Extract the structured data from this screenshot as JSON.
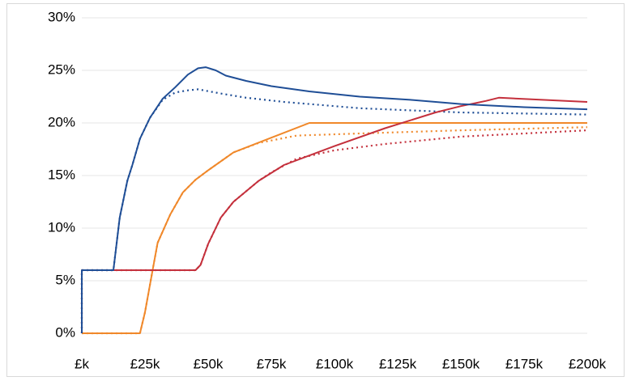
{
  "chart_data": {
    "type": "line",
    "xlim": [
      0,
      200000
    ],
    "xticks": [
      {
        "value": 0,
        "label": "£k"
      },
      {
        "value": 25000,
        "label": "£25k"
      },
      {
        "value": 50000,
        "label": "£50k"
      },
      {
        "value": 75000,
        "label": "£75k"
      },
      {
        "value": 100000,
        "label": "£100k"
      },
      {
        "value": 125000,
        "label": "£125k"
      },
      {
        "value": 150000,
        "label": "£150k"
      },
      {
        "value": 175000,
        "label": "£175k"
      },
      {
        "value": 200000,
        "label": "£200k"
      }
    ],
    "ylim": [
      0,
      30
    ],
    "yticks": [
      {
        "value": 0,
        "label": "0%"
      },
      {
        "value": 5,
        "label": "5%"
      },
      {
        "value": 10,
        "label": "10%"
      },
      {
        "value": 15,
        "label": "15%"
      },
      {
        "value": 20,
        "label": "20%"
      },
      {
        "value": 25,
        "label": "25%"
      },
      {
        "value": 30,
        "label": "30%"
      }
    ],
    "grid": true,
    "series": [
      {
        "color": "#c4303c",
        "style": "dotted",
        "x": [
          0,
          0,
          45000,
          47000,
          50000,
          55000,
          60000,
          70000,
          75000,
          85000,
          100000,
          120000,
          150000,
          175000,
          200000
        ],
        "values": [
          0,
          6,
          6,
          6.5,
          8.5,
          11,
          12.5,
          14.5,
          15.3,
          16.6,
          17.4,
          18.0,
          18.7,
          19.0,
          19.3
        ]
      },
      {
        "color": "#f0882a",
        "style": "dotted",
        "x": [
          0,
          23000,
          25000,
          28000,
          30000,
          35000,
          40000,
          45000,
          50000,
          60000,
          70000,
          85000,
          110000,
          150000,
          200000
        ],
        "values": [
          0,
          0,
          2,
          6,
          8.6,
          11.3,
          13.4,
          14.6,
          15.5,
          17.2,
          18.1,
          18.8,
          19.0,
          19.3,
          19.6
        ]
      },
      {
        "color": "#1f4e96",
        "style": "dotted",
        "x": [
          0,
          0,
          12500,
          15000,
          18000,
          20000,
          23000,
          27000,
          32000,
          37000,
          42000,
          46000,
          55000,
          65000,
          80000,
          110000,
          150000,
          200000
        ],
        "values": [
          0,
          6,
          6,
          11,
          14.5,
          16,
          18.5,
          20.5,
          22.2,
          22.9,
          23.1,
          23.2,
          22.8,
          22.4,
          22.0,
          21.4,
          21.0,
          20.8
        ]
      },
      {
        "color": "#f0882a",
        "style": "solid",
        "x": [
          0,
          23000,
          25000,
          28000,
          30000,
          35000,
          40000,
          45000,
          50000,
          60000,
          75000,
          90000,
          200000
        ],
        "values": [
          0,
          0,
          2,
          6,
          8.6,
          11.3,
          13.4,
          14.6,
          15.5,
          17.2,
          18.6,
          20,
          20
        ]
      },
      {
        "color": "#c4303c",
        "style": "solid",
        "x": [
          0,
          0,
          45000,
          47000,
          50000,
          55000,
          60000,
          70000,
          80000,
          100000,
          120000,
          140000,
          150000,
          160000,
          165000,
          200000
        ],
        "values": [
          0,
          6,
          6,
          6.5,
          8.5,
          11,
          12.5,
          14.5,
          16,
          17.8,
          19.5,
          21,
          21.6,
          22.1,
          22.4,
          22.0
        ]
      },
      {
        "color": "#1f4e96",
        "style": "solid",
        "x": [
          0,
          0,
          12500,
          15000,
          18000,
          20000,
          23000,
          27000,
          32000,
          37000,
          42000,
          46000,
          49000,
          53000,
          57000,
          65000,
          75000,
          90000,
          110000,
          130000,
          150000,
          175000,
          200000
        ],
        "values": [
          0,
          6,
          6,
          11,
          14.5,
          16,
          18.5,
          20.5,
          22.3,
          23.4,
          24.6,
          25.2,
          25.3,
          25.0,
          24.5,
          24.0,
          23.5,
          23.0,
          22.5,
          22.2,
          21.8,
          21.5,
          21.3
        ]
      }
    ]
  }
}
